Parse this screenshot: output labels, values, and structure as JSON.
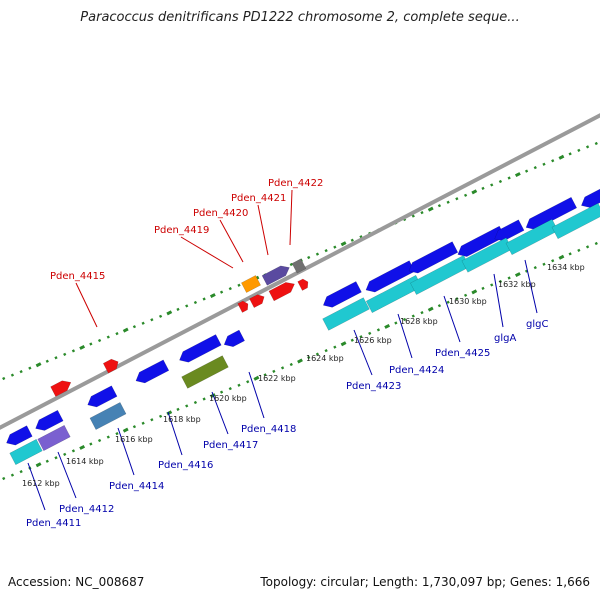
{
  "title": "Paracoccus denitrificans PD1222 chromosome 2, complete seque...",
  "footer": {
    "accession": "Accession: NC_008687",
    "topology": "Topology: circular; Length: 1,730,097 bp; Genes: 1,666"
  },
  "colors": {
    "backbone": "#9a9a9a",
    "dots": "#2a8a2a",
    "blue": "#1010e8",
    "cyan": "#20c8d0",
    "red": "#ee1111",
    "orange": "#ff9900",
    "purple": "#5a4aa0",
    "gray": "#707070",
    "olive": "#6a8a20",
    "steel": "#4682b4",
    "violet": "#7a60d0"
  },
  "ticks": [
    {
      "label": "1612 kbp",
      "pos": 1612
    },
    {
      "label": "1614 kbp",
      "pos": 1614
    },
    {
      "label": "1616 kbp",
      "pos": 1616
    },
    {
      "label": "1618 kbp",
      "pos": 1618
    },
    {
      "label": "1620 kbp",
      "pos": 1620
    },
    {
      "label": "1622 kbp",
      "pos": 1622
    },
    {
      "label": "1624 kbp",
      "pos": 1624
    },
    {
      "label": "1626 kbp",
      "pos": 1626
    },
    {
      "label": "1628 kbp",
      "pos": 1628
    },
    {
      "label": "1630 kbp",
      "pos": 1630
    },
    {
      "label": "1632 kbp",
      "pos": 1632
    },
    {
      "label": "1634 kbp",
      "pos": 1634
    }
  ],
  "genes_forward": [
    {
      "label": "Pden_4415",
      "color": "red"
    },
    {
      "label": "Pden_4419",
      "color": "orange"
    },
    {
      "label": "Pden_4420",
      "color": "red"
    },
    {
      "label": "Pden_4421",
      "color": "purple"
    },
    {
      "label": "Pden_4422",
      "color": "gray"
    }
  ],
  "genes_reverse": [
    {
      "label": "Pden_4411"
    },
    {
      "label": "Pden_4412"
    },
    {
      "label": "Pden_4414"
    },
    {
      "label": "Pden_4416"
    },
    {
      "label": "Pden_4417"
    },
    {
      "label": "Pden_4418"
    },
    {
      "label": "Pden_4423"
    },
    {
      "label": "Pden_4424"
    },
    {
      "label": "Pden_4425"
    },
    {
      "label": "glgA"
    },
    {
      "label": "glgC"
    }
  ]
}
